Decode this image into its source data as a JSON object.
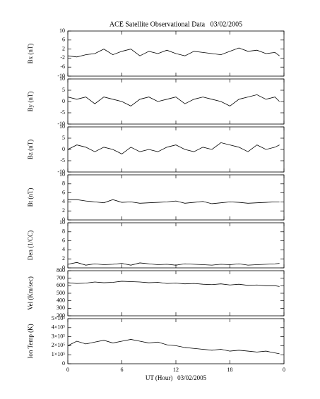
{
  "chart_data": [
    {
      "type": "line",
      "title": "ACE Satellite Observational Data   03/02/2005",
      "y_label": "Bx (nT)",
      "xlim": [
        0,
        24
      ],
      "ylim": [
        -10,
        10
      ],
      "yticks": [
        -10,
        -6,
        -2,
        2,
        6,
        10
      ],
      "color": "#000000",
      "x": [
        0,
        1,
        2,
        3,
        4,
        5,
        6,
        7,
        8,
        9,
        10,
        11,
        12,
        13,
        14,
        15,
        16,
        17,
        18,
        19,
        20,
        21,
        22,
        23,
        23.5
      ],
      "values": [
        -1,
        -1.5,
        -0.5,
        0,
        2,
        -0.5,
        1,
        2,
        -1,
        1,
        0,
        1.5,
        0,
        -1,
        1,
        0.5,
        0,
        -0.5,
        1,
        2.5,
        1,
        1.5,
        0,
        0.5,
        -1
      ]
    },
    {
      "type": "line",
      "y_label": "By (nT)",
      "xlim": [
        0,
        24
      ],
      "ylim": [
        -10,
        10
      ],
      "yticks": [
        -10,
        -5,
        0,
        5,
        10
      ],
      "color": "#000000",
      "x": [
        0,
        1,
        2,
        3,
        4,
        5,
        6,
        7,
        8,
        9,
        10,
        11,
        12,
        13,
        14,
        15,
        16,
        17,
        18,
        19,
        20,
        21,
        22,
        23,
        23.5
      ],
      "values": [
        2,
        1,
        2,
        -1,
        2,
        1,
        0,
        -2,
        1,
        2,
        0,
        1,
        2,
        -1,
        1,
        2,
        1,
        0,
        -2,
        1,
        2,
        3,
        1,
        2,
        0
      ]
    },
    {
      "type": "line",
      "y_label": "Bz (nT)",
      "xlim": [
        0,
        24
      ],
      "ylim": [
        -10,
        10
      ],
      "yticks": [
        -10,
        -5,
        0,
        5,
        10
      ],
      "color": "#000000",
      "x": [
        0,
        1,
        2,
        3,
        4,
        5,
        6,
        7,
        8,
        9,
        10,
        11,
        12,
        13,
        14,
        15,
        16,
        17,
        18,
        19,
        20,
        21,
        22,
        23,
        23.5
      ],
      "values": [
        0,
        2,
        1,
        -1,
        1,
        0,
        -2,
        1,
        -1,
        0,
        -1,
        1,
        2,
        0,
        -1,
        1,
        0,
        3,
        2,
        1,
        -1,
        2,
        0,
        1,
        2
      ]
    },
    {
      "type": "line",
      "y_label": "Bt (nT)",
      "xlim": [
        0,
        24
      ],
      "ylim": [
        0,
        10
      ],
      "yticks": [
        0,
        2,
        4,
        6,
        8,
        10
      ],
      "color": "#000000",
      "x": [
        0,
        1,
        2,
        3,
        4,
        5,
        6,
        7,
        8,
        9,
        10,
        11,
        12,
        13,
        14,
        15,
        16,
        17,
        18,
        19,
        20,
        21,
        22,
        23,
        23.5
      ],
      "values": [
        4.5,
        4.5,
        4.2,
        4,
        3.8,
        4.5,
        3.9,
        4,
        3.7,
        3.8,
        3.9,
        4,
        4.2,
        3.7,
        3.9,
        4.1,
        3.6,
        3.8,
        4,
        3.9,
        3.7,
        3.8,
        3.9,
        4,
        4
      ]
    },
    {
      "type": "line",
      "y_label": "Den (1/CC)",
      "xlim": [
        0,
        24
      ],
      "ylim": [
        0,
        10
      ],
      "yticks": [
        0,
        2,
        4,
        6,
        8,
        10
      ],
      "color": "#000000",
      "x": [
        0,
        1,
        2,
        3,
        4,
        5,
        6,
        7,
        8,
        9,
        10,
        11,
        12,
        13,
        14,
        15,
        16,
        17,
        18,
        19,
        20,
        21,
        22,
        23,
        23.5
      ],
      "values": [
        0.8,
        1.2,
        0.6,
        0.9,
        0.7,
        0.8,
        1,
        0.6,
        1.1,
        0.9,
        0.7,
        0.8,
        0.6,
        0.9,
        0.8,
        0.7,
        0.6,
        0.8,
        0.7,
        0.9,
        0.6,
        0.7,
        0.8,
        0.9,
        1
      ]
    },
    {
      "type": "line",
      "y_label": "Vel (Km/sec)",
      "xlim": [
        0,
        24
      ],
      "ylim": [
        200,
        800
      ],
      "yticks": [
        200,
        300,
        400,
        500,
        600,
        700,
        800
      ],
      "color": "#000000",
      "x": [
        0,
        1,
        2,
        3,
        4,
        5,
        6,
        7,
        8,
        9,
        10,
        11,
        12,
        13,
        14,
        15,
        16,
        17,
        18,
        19,
        20,
        21,
        22,
        23,
        23.5
      ],
      "values": [
        640,
        630,
        635,
        650,
        640,
        645,
        660,
        655,
        650,
        640,
        645,
        630,
        635,
        625,
        630,
        620,
        615,
        625,
        610,
        620,
        605,
        610,
        600,
        600,
        590
      ]
    },
    {
      "type": "line",
      "y_label": "Ion Temp (K)",
      "x_label": "UT (Hour)   03/02/2005",
      "xlim": [
        0,
        24
      ],
      "ylim": [
        0,
        500000
      ],
      "yticks": [
        0,
        {
          "value": 100000,
          "label": "1×10⁵"
        },
        {
          "value": 200000,
          "label": "2×10⁵"
        },
        {
          "value": 300000,
          "label": "3×10⁵"
        },
        {
          "value": 400000,
          "label": "4×10⁵"
        },
        {
          "value": 500000,
          "label": "5×10⁵"
        }
      ],
      "xticks": [
        0,
        6,
        12,
        18,
        {
          "value": 24,
          "label": "0"
        }
      ],
      "color": "#000000",
      "x": [
        0,
        1,
        2,
        3,
        4,
        5,
        6,
        7,
        8,
        9,
        10,
        11,
        12,
        13,
        14,
        15,
        16,
        17,
        18,
        19,
        20,
        21,
        22,
        23,
        23.5
      ],
      "values": [
        200000,
        250000,
        220000,
        240000,
        260000,
        230000,
        250000,
        270000,
        250000,
        230000,
        240000,
        210000,
        200000,
        180000,
        170000,
        160000,
        150000,
        160000,
        140000,
        150000,
        140000,
        130000,
        140000,
        120000,
        110000
      ]
    }
  ]
}
